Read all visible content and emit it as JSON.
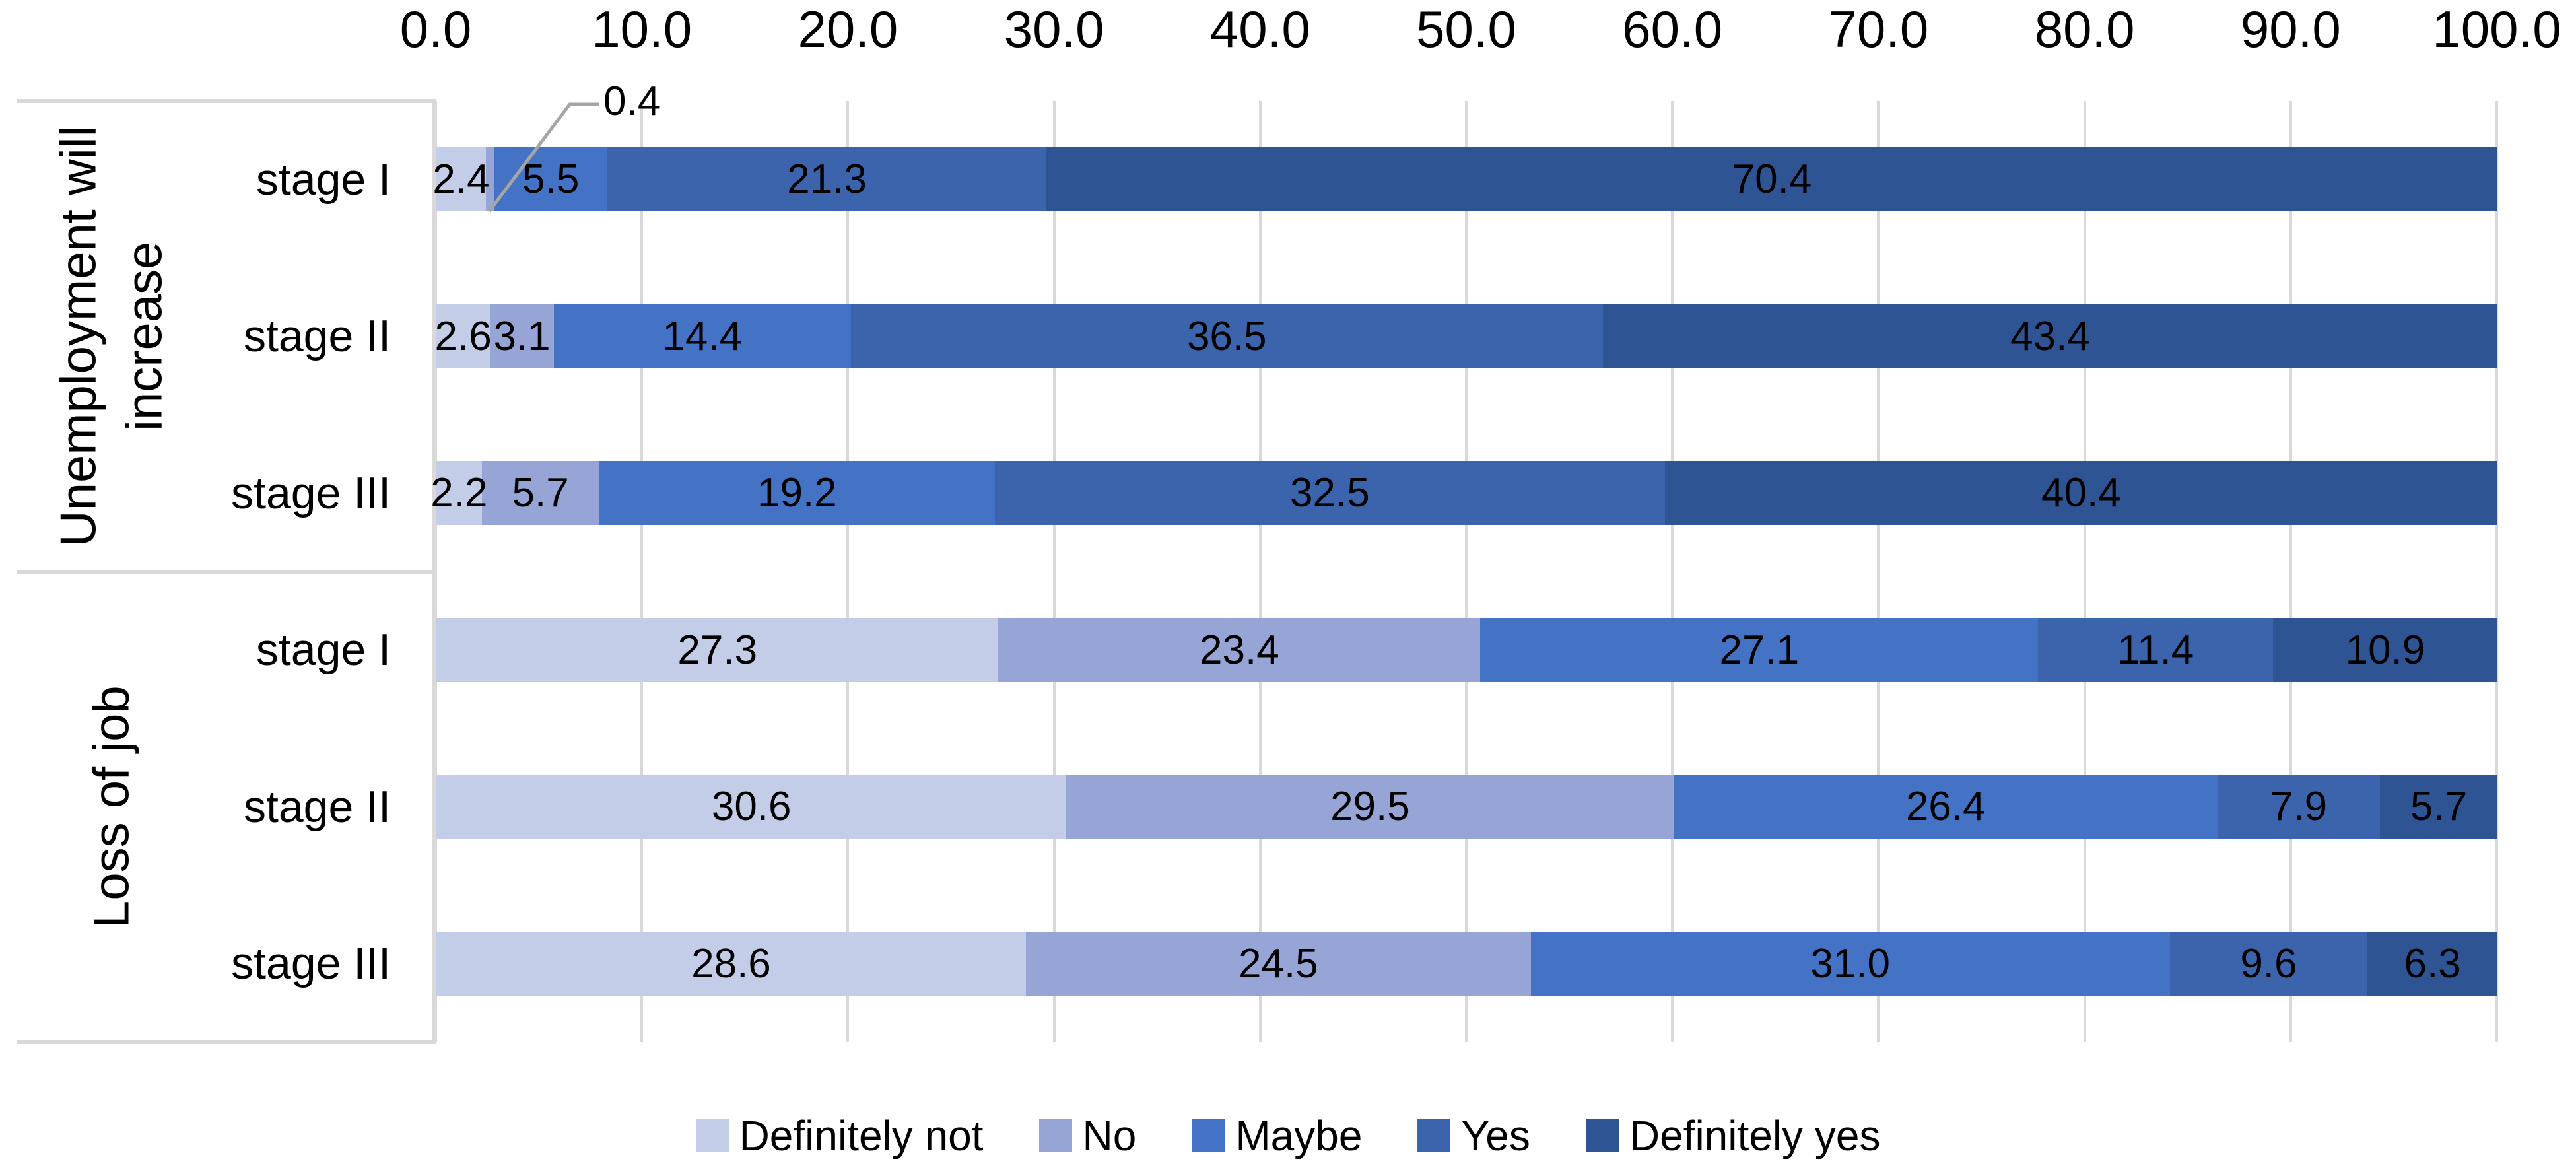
{
  "chart_data": {
    "type": "bar",
    "subtype": "horizontal-stacked-100",
    "title": "",
    "x_axis": {
      "position": "top",
      "min": 0,
      "max": 100,
      "ticks": [
        "0.0",
        "10.0",
        "20.0",
        "30.0",
        "40.0",
        "50.0",
        "60.0",
        "70.0",
        "80.0",
        "90.0",
        "100.0"
      ],
      "grid": true
    },
    "series_names": [
      "Definitely not",
      "No",
      "Maybe",
      "Yes",
      "Definitely yes"
    ],
    "series_colors": [
      "#c4cde7",
      "#96a5d6",
      "#4472c4",
      "#3b64ad",
      "#2e5494"
    ],
    "groups": [
      {
        "label": "Unemployment will increase",
        "label_lines": [
          "Unemployment will",
          "increase"
        ],
        "rows": [
          {
            "category": "stage I",
            "values": [
              2.4,
              0.4,
              5.5,
              21.3,
              70.4
            ],
            "value_labels": [
              "2.4",
              "0.4",
              "5.5",
              "21.3",
              "70.4"
            ]
          },
          {
            "category": "stage II",
            "values": [
              2.6,
              3.1,
              14.4,
              36.5,
              43.4
            ],
            "value_labels": [
              "2.6",
              "3.1",
              "14.4",
              "36.5",
              "43.4"
            ]
          },
          {
            "category": "stage III",
            "values": [
              2.2,
              5.7,
              19.2,
              32.5,
              40.4
            ],
            "value_labels": [
              "2.2",
              "5.7",
              "19.2",
              "32.5",
              "40.4"
            ]
          }
        ]
      },
      {
        "label": "Loss of job",
        "label_lines": [
          "Loss of job"
        ],
        "rows": [
          {
            "category": "stage I",
            "values": [
              27.3,
              23.4,
              27.1,
              11.4,
              10.9
            ],
            "value_labels": [
              "27.3",
              "23.4",
              "27.1",
              "11.4",
              "10.9"
            ]
          },
          {
            "category": "stage II",
            "values": [
              30.6,
              29.5,
              26.4,
              7.9,
              5.7
            ],
            "value_labels": [
              "30.6",
              "29.5",
              "26.4",
              "7.9",
              "5.7"
            ]
          },
          {
            "category": "stage III",
            "values": [
              28.6,
              24.5,
              31.0,
              9.6,
              6.3
            ],
            "value_labels": [
              "28.6",
              "24.5",
              "31.0",
              "9.6",
              "6.3"
            ]
          }
        ]
      }
    ],
    "callout": {
      "text": "0.4",
      "group_index": 0,
      "row_index": 0,
      "segment_index": 1
    },
    "legend": {
      "position": "bottom",
      "items": [
        "Definitely not",
        "No",
        "Maybe",
        "Yes",
        "Definitely yes"
      ]
    },
    "style_colors": {
      "gridline": "#d9d9d9",
      "category_border": "#d9d9d9",
      "leader_line": "#a6a6a6",
      "text": "#000000",
      "background": "#ffffff"
    }
  }
}
